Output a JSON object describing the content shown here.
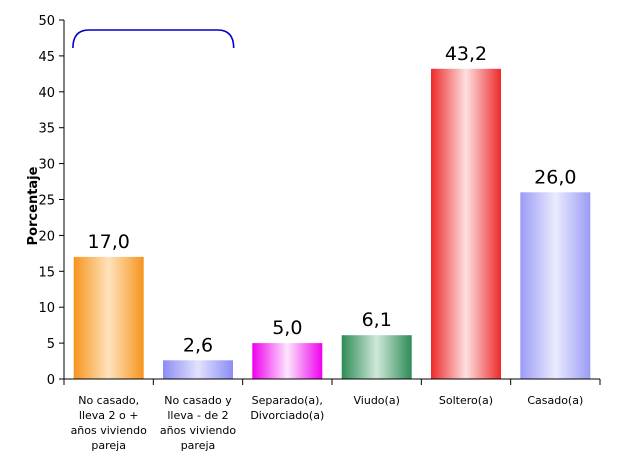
{
  "chart_data": {
    "type": "bar",
    "ylabel": "Porcentaje",
    "xlabel": "",
    "ylim": [
      0,
      50
    ],
    "yticks": [
      0,
      5,
      10,
      15,
      20,
      25,
      30,
      35,
      40,
      45,
      50
    ],
    "categories": [
      [
        "No casado,",
        "lleva 2 o +",
        "años viviendo",
        "pareja"
      ],
      [
        "No casado y",
        "lleva - de 2",
        "años viviendo",
        "pareja"
      ],
      [
        "Separado(a),",
        "Divorciado(a)"
      ],
      [
        "Viudo(a)"
      ],
      [
        "Soltero(a)"
      ],
      [
        "Casado(a)"
      ]
    ],
    "values": [
      17.0,
      2.6,
      5.0,
      6.1,
      43.2,
      26.0
    ],
    "value_labels": [
      "17,0",
      "2,6",
      "5,0",
      "6,1",
      "43,2",
      "26,0"
    ],
    "bar_colors": [
      [
        "#f7941d",
        "#fde3bd"
      ],
      [
        "#8c8cf5",
        "#e2e2fd"
      ],
      [
        "#ee00ee",
        "#fde6fd"
      ],
      [
        "#2e8b57",
        "#cfe9d8"
      ],
      [
        "#ee2a2a",
        "#fde0e0"
      ],
      [
        "#9b9bf7",
        "#ebebfe"
      ]
    ],
    "bracket_color": "#0000cc",
    "grid": false,
    "legend": "none"
  }
}
